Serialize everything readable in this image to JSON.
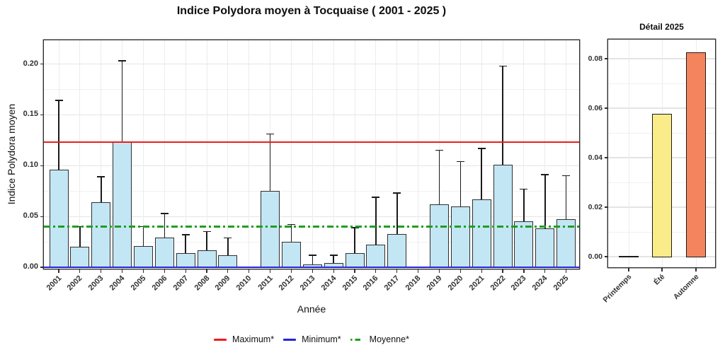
{
  "title": "Indice Polydora moyen à Tocquaise ( 2001 - 2025 )",
  "chart_data": [
    {
      "type": "bar",
      "title": "",
      "xlabel": "Année",
      "ylabel": "Indice Polydora moyen",
      "categories": [
        "2001",
        "2002",
        "2003",
        "2004",
        "2005",
        "2006",
        "2007",
        "2008",
        "2009",
        "2010",
        "2011",
        "2012",
        "2013",
        "2014",
        "2015",
        "2016",
        "2017",
        "2018",
        "2019",
        "2020",
        "2021",
        "2022",
        "2023",
        "2024",
        "2025"
      ],
      "values": [
        0.096,
        0.02,
        0.064,
        0.123,
        0.021,
        0.029,
        0.014,
        0.017,
        0.012,
        null,
        0.075,
        0.025,
        0.003,
        0.004,
        0.014,
        0.022,
        0.033,
        null,
        0.062,
        0.06,
        0.067,
        0.101,
        0.045,
        0.038,
        0.047
      ],
      "error_high": [
        0.164,
        0.04,
        0.089,
        0.203,
        0.04,
        0.053,
        0.032,
        0.035,
        0.029,
        null,
        0.131,
        0.042,
        0.012,
        0.012,
        0.039,
        0.069,
        0.073,
        null,
        0.115,
        0.104,
        0.117,
        0.198,
        0.077,
        0.091,
        0.09
      ],
      "yticks": [
        0,
        0.05,
        0.1,
        0.15,
        0.2
      ],
      "ytick_labels": [
        "0.00",
        "0.05",
        "0.10",
        "0.15",
        "0.20"
      ],
      "yticks_minor": [
        0.025,
        0.075,
        0.125,
        0.175
      ],
      "ylim": [
        0,
        0.223
      ],
      "grid": true,
      "bar_fill": "#C3E6F4",
      "bar_border": "#2F2F2F",
      "error_bar_color": "#1A1A1A",
      "reference_lines": [
        {
          "label": "Maximum*",
          "value": 0.123,
          "color": "#EE1C1C",
          "style": "solid"
        },
        {
          "label": "Minimum*",
          "value": 0.0,
          "color": "#2424D8",
          "style": "solid"
        },
        {
          "label": "Moyenne*",
          "value": 0.04,
          "color": "#1F9E1F",
          "style": "dashdot"
        }
      ]
    },
    {
      "type": "bar",
      "title": "Détail 2025",
      "xlabel": "",
      "ylabel": "",
      "categories": [
        "Printemps",
        "Été",
        "Automne"
      ],
      "values": [
        0.0,
        0.058,
        0.083
      ],
      "bar_fills": [
        "#FFFFFF",
        "#FBEC8A",
        "#F4845E"
      ],
      "bar_border": "#1A1A1A",
      "yticks": [
        0,
        0.02,
        0.04,
        0.06,
        0.08
      ],
      "ytick_labels": [
        "0.00",
        "0.02",
        "0.04",
        "0.06",
        "0.08"
      ],
      "yticks_minor": [
        0.01,
        0.03,
        0.05,
        0.07
      ],
      "ylim": [
        0,
        0.088
      ],
      "grid": true
    }
  ],
  "legend": {
    "items": [
      {
        "label": "Maximum*",
        "color": "#EE1C1C",
        "style": "solid"
      },
      {
        "label": "Minimum*",
        "color": "#2424D8",
        "style": "solid"
      },
      {
        "label": "Moyenne*",
        "color": "#1F9E1F",
        "style": "dashdot"
      }
    ]
  }
}
